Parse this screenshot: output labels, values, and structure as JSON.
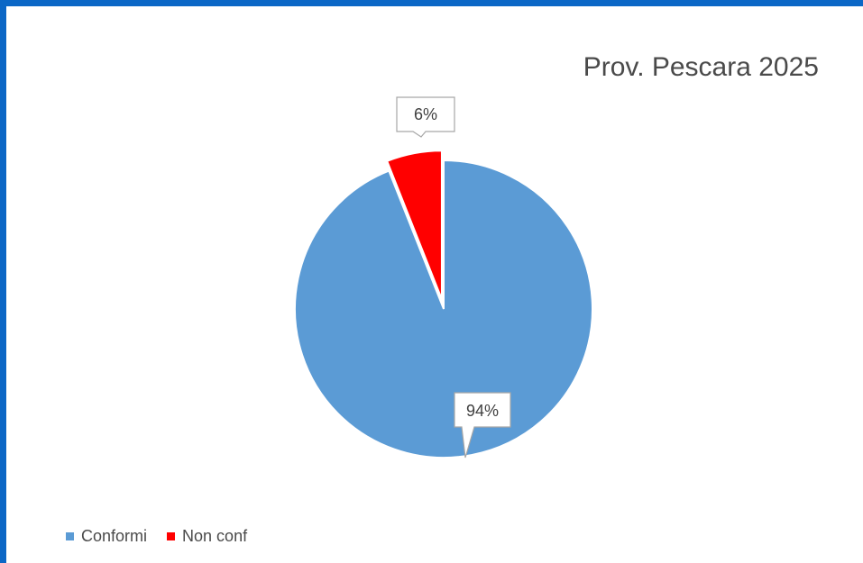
{
  "colors": {
    "frame": "#0B67C6",
    "conformi": "#5B9BD5",
    "non_conf": "#FF0000",
    "label_border": "#A6A6A6"
  },
  "chart_data": {
    "type": "pie",
    "title": "Prov. Pescara 2025",
    "slices": [
      {
        "name": "Conformi",
        "value": 94,
        "label": "94%",
        "color": "#5B9BD5"
      },
      {
        "name": "Non conf",
        "value": 6,
        "label": "6%",
        "color": "#FF0000",
        "exploded": true
      }
    ],
    "legend": {
      "placement": "bottom-left",
      "entries": [
        "Conformi",
        "Non conf"
      ]
    }
  }
}
